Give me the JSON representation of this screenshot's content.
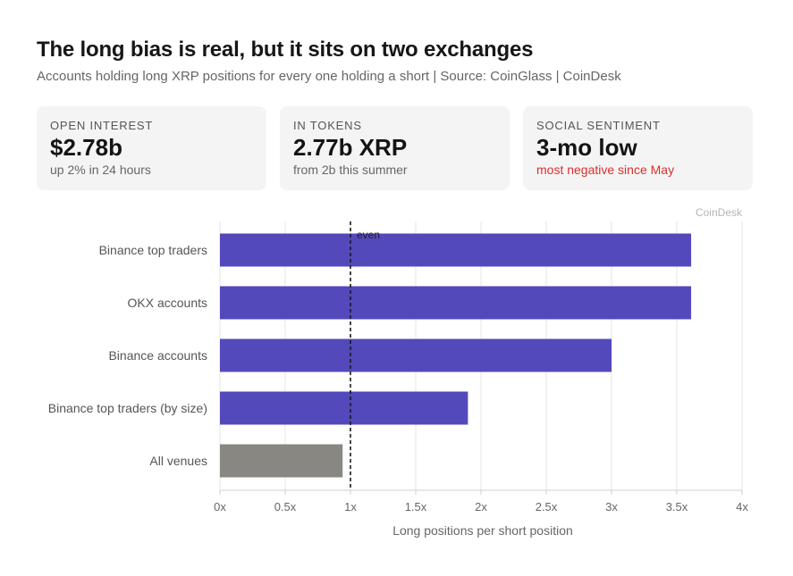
{
  "header": {
    "title": "The long bias is real, but it sits on two exchanges",
    "subtitle": "Accounts holding long XRP positions for every one holding a short | Source: CoinGlass | CoinDesk"
  },
  "cards": [
    {
      "label": "OPEN INTEREST",
      "value": "$2.78b",
      "note": "up 2% in 24 hours",
      "note_color": "#666666"
    },
    {
      "label": "IN TOKENS",
      "value": "2.77b XRP",
      "note": "from 2b this summer",
      "note_color": "#666666"
    },
    {
      "label": "SOCIAL SENTIMENT",
      "value": "3-mo low",
      "note": "most negative since May",
      "note_color": "#d9302c"
    }
  ],
  "chart_data": {
    "type": "bar",
    "orientation": "horizontal",
    "categories": [
      "Binance top traders",
      "OKX accounts",
      "Binance accounts",
      "Binance top traders (by size)",
      "All venues"
    ],
    "values": [
      3.61,
      3.61,
      3.0,
      1.9,
      0.94
    ],
    "bar_colors": [
      "#5349bb",
      "#5349bb",
      "#5349bb",
      "#5349bb",
      "#888781"
    ],
    "xlabel": "Long positions per short position",
    "xlim": [
      0,
      4
    ],
    "xticks": [
      0,
      0.5,
      1,
      1.5,
      2,
      2.5,
      3,
      3.5,
      4
    ],
    "xtick_labels": [
      "0x",
      "0.5x",
      "1x",
      "1.5x",
      "2x",
      "2.5x",
      "3x",
      "3.5x",
      "4x"
    ],
    "reference_line": {
      "x": 1,
      "label": "even",
      "style": "dashed"
    },
    "credit": "CoinDesk",
    "grid": "vertical"
  }
}
